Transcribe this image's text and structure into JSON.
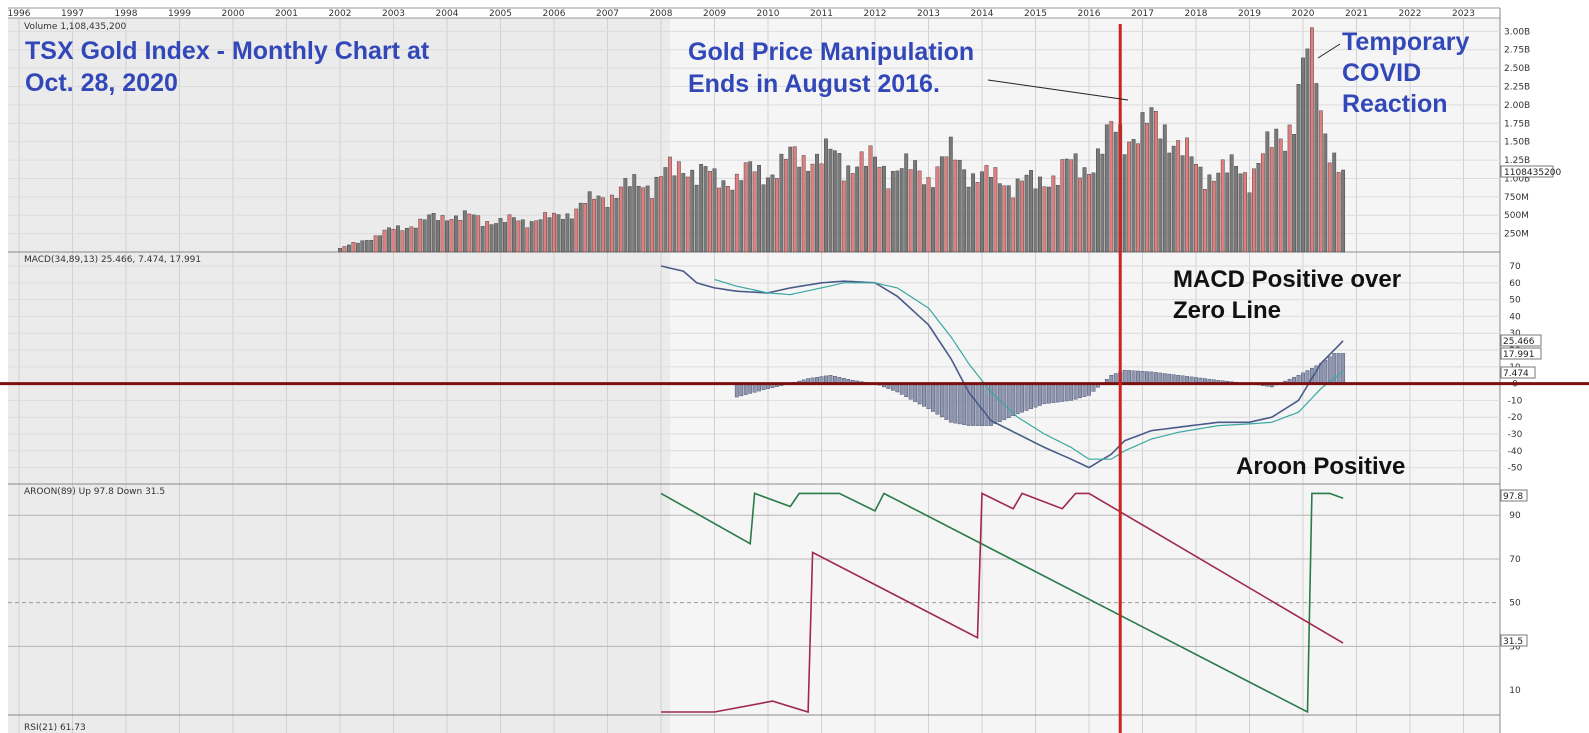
{
  "years": [
    "1996",
    "1997",
    "1998",
    "1999",
    "2000",
    "2001",
    "2002",
    "2003",
    "2004",
    "2005",
    "2006",
    "2007",
    "2008",
    "2009",
    "2010",
    "2011",
    "2012",
    "2013",
    "2014",
    "2015",
    "2016",
    "2017",
    "2018",
    "2019",
    "2020",
    "2021",
    "2022",
    "2023"
  ],
  "annotations": {
    "title_line1": "TSX Gold Index - Monthly Chart at",
    "title_line2": "Oct. 28, 2020",
    "manip_line1": "Gold Price Manipulation",
    "manip_line2": "Ends in August 2016.",
    "covid_line1": "Temporary",
    "covid_line2": "COVID",
    "covid_line3": "Reaction",
    "macd_line1": "MACD Positive over",
    "macd_line2": "Zero Line",
    "aroon": "Aroon Positive"
  },
  "colors": {
    "up_bar": "#e07d7d",
    "down_bar": "#7a7a7a",
    "macd_line": "#4a5a8a",
    "signal_line": "#3aa8a0",
    "histogram": "#8f97b0",
    "aroon_up": "#2a7a4a",
    "aroon_down": "#a0284a",
    "marker_vertical": "#cc2222",
    "zero_line": "#7a1010",
    "annotation_blue": "#3348b8"
  },
  "chart_data": [
    {
      "type": "bar",
      "panel_label": "Volume 1,108,435,200",
      "last_value_tag": "1108435200",
      "y_ticks": [
        "3.00B",
        "2.75B",
        "2.50B",
        "2.25B",
        "2.00B",
        "1.75B",
        "1.50B",
        "1.25B",
        "1.00B",
        "750M",
        "500M",
        "250M"
      ],
      "ylim": [
        0,
        3.1
      ],
      "unit": "billions",
      "start_month": "2002-01",
      "end_month": "2020-10",
      "anchors": [
        {
          "date": "2002-01",
          "value": 0.05
        },
        {
          "date": "2003-01",
          "value": 0.33
        },
        {
          "date": "2004-01",
          "value": 0.55
        },
        {
          "date": "2005-01",
          "value": 0.45
        },
        {
          "date": "2006-01",
          "value": 0.5
        },
        {
          "date": "2007-01",
          "value": 0.85
        },
        {
          "date": "2008-01",
          "value": 1.1
        },
        {
          "date": "2008-07",
          "value": 1.3
        },
        {
          "date": "2009-01",
          "value": 1.05
        },
        {
          "date": "2010-01",
          "value": 1.2
        },
        {
          "date": "2010-10",
          "value": 1.45
        },
        {
          "date": "2011-06",
          "value": 1.35
        },
        {
          "date": "2012-01",
          "value": 1.3
        },
        {
          "date": "2013-01",
          "value": 1.15
        },
        {
          "date": "2013-06",
          "value": 1.4
        },
        {
          "date": "2014-01",
          "value": 1.1
        },
        {
          "date": "2015-01",
          "value": 1.0
        },
        {
          "date": "2015-06",
          "value": 1.2
        },
        {
          "date": "2016-01",
          "value": 1.3
        },
        {
          "date": "2016-07",
          "value": 1.75
        },
        {
          "date": "2017-01",
          "value": 1.8
        },
        {
          "date": "2017-06",
          "value": 1.9
        },
        {
          "date": "2018-01",
          "value": 1.2
        },
        {
          "date": "2019-01",
          "value": 1.2
        },
        {
          "date": "2019-09",
          "value": 1.75
        },
        {
          "date": "2020-03",
          "value": 3.05
        },
        {
          "date": "2020-05",
          "value": 2.05
        },
        {
          "date": "2020-10",
          "value": 1.1
        }
      ]
    },
    {
      "type": "line",
      "panel_label": "MACD(34,89,13) 25.466, 7.474, 17.991",
      "value_tags": [
        "25.466",
        "17.991",
        "7.474"
      ],
      "y_ticks": [
        "70",
        "60",
        "50",
        "40",
        "30",
        "20",
        "10",
        "0",
        "-10",
        "-20",
        "-30",
        "-40",
        "-50"
      ],
      "ylim": [
        -55,
        73
      ],
      "series": [
        {
          "name": "MACD",
          "values": [
            {
              "date": "2008-01",
              "value": 70
            },
            {
              "date": "2008-06",
              "value": 67
            },
            {
              "date": "2008-09",
              "value": 60
            },
            {
              "date": "2009-01",
              "value": 57
            },
            {
              "date": "2009-06",
              "value": 55
            },
            {
              "date": "2010-01",
              "value": 54
            },
            {
              "date": "2010-06",
              "value": 57
            },
            {
              "date": "2011-01",
              "value": 60
            },
            {
              "date": "2011-06",
              "value": 61
            },
            {
              "date": "2012-01",
              "value": 60
            },
            {
              "date": "2012-06",
              "value": 52
            },
            {
              "date": "2013-01",
              "value": 35
            },
            {
              "date": "2013-06",
              "value": 15
            },
            {
              "date": "2013-10",
              "value": -5
            },
            {
              "date": "2014-03",
              "value": -22
            },
            {
              "date": "2014-09",
              "value": -30
            },
            {
              "date": "2015-03",
              "value": -38
            },
            {
              "date": "2015-09",
              "value": -45
            },
            {
              "date": "2016-01",
              "value": -50
            },
            {
              "date": "2016-06",
              "value": -42
            },
            {
              "date": "2016-09",
              "value": -34
            },
            {
              "date": "2017-03",
              "value": -28
            },
            {
              "date": "2017-09",
              "value": -26
            },
            {
              "date": "2018-06",
              "value": -23
            },
            {
              "date": "2019-01",
              "value": -23
            },
            {
              "date": "2019-06",
              "value": -20
            },
            {
              "date": "2019-12",
              "value": -10
            },
            {
              "date": "2020-05",
              "value": 12
            },
            {
              "date": "2020-10",
              "value": 25.466
            }
          ]
        },
        {
          "name": "Signal",
          "values": [
            {
              "date": "2009-01",
              "value": 62
            },
            {
              "date": "2009-06",
              "value": 58
            },
            {
              "date": "2010-01",
              "value": 54
            },
            {
              "date": "2010-06",
              "value": 53
            },
            {
              "date": "2011-01",
              "value": 57
            },
            {
              "date": "2011-06",
              "value": 60
            },
            {
              "date": "2012-01",
              "value": 60
            },
            {
              "date": "2012-06",
              "value": 57
            },
            {
              "date": "2013-01",
              "value": 45
            },
            {
              "date": "2013-06",
              "value": 28
            },
            {
              "date": "2013-10",
              "value": 12
            },
            {
              "date": "2014-03",
              "value": -5
            },
            {
              "date": "2014-09",
              "value": -20
            },
            {
              "date": "2015-03",
              "value": -30
            },
            {
              "date": "2015-09",
              "value": -38
            },
            {
              "date": "2016-01",
              "value": -45
            },
            {
              "date": "2016-06",
              "value": -45
            },
            {
              "date": "2016-09",
              "value": -40
            },
            {
              "date": "2017-03",
              "value": -33
            },
            {
              "date": "2017-09",
              "value": -29
            },
            {
              "date": "2018-06",
              "value": -25
            },
            {
              "date": "2019-01",
              "value": -24
            },
            {
              "date": "2019-06",
              "value": -23
            },
            {
              "date": "2019-12",
              "value": -17
            },
            {
              "date": "2020-05",
              "value": -3
            },
            {
              "date": "2020-10",
              "value": 7.474
            }
          ]
        },
        {
          "name": "Histogram",
          "values": [
            {
              "date": "2009-06",
              "value": -8
            },
            {
              "date": "2010-01",
              "value": -3
            },
            {
              "date": "2010-06",
              "value": 0
            },
            {
              "date": "2010-10",
              "value": 3
            },
            {
              "date": "2011-03",
              "value": 5
            },
            {
              "date": "2011-08",
              "value": 2
            },
            {
              "date": "2012-01",
              "value": 0
            },
            {
              "date": "2012-06",
              "value": -5
            },
            {
              "date": "2013-01",
              "value": -15
            },
            {
              "date": "2013-06",
              "value": -23
            },
            {
              "date": "2013-10",
              "value": -25
            },
            {
              "date": "2014-03",
              "value": -25
            },
            {
              "date": "2014-09",
              "value": -18
            },
            {
              "date": "2015-03",
              "value": -12
            },
            {
              "date": "2015-09",
              "value": -10
            },
            {
              "date": "2016-01",
              "value": -7
            },
            {
              "date": "2016-06",
              "value": 5
            },
            {
              "date": "2016-09",
              "value": 8
            },
            {
              "date": "2017-03",
              "value": 7
            },
            {
              "date": "2017-09",
              "value": 5
            },
            {
              "date": "2018-06",
              "value": 2
            },
            {
              "date": "2019-01",
              "value": 0
            },
            {
              "date": "2019-06",
              "value": -2
            },
            {
              "date": "2019-12",
              "value": 5
            },
            {
              "date": "2020-05",
              "value": 12
            },
            {
              "date": "2020-08",
              "value": 18
            },
            {
              "date": "2020-10",
              "value": 17.991
            }
          ]
        }
      ]
    },
    {
      "type": "line",
      "panel_label": "AROON(89) Up 97.8 Down 31.5",
      "value_tags": [
        "97.8",
        "31.5"
      ],
      "y_ticks": [
        "90",
        "70",
        "50",
        "30",
        "10"
      ],
      "gridlines": [
        90,
        70,
        50,
        30
      ],
      "ylim": [
        0,
        102
      ],
      "series": [
        {
          "name": "Up",
          "values": [
            {
              "date": "2008-01",
              "value": 100
            },
            {
              "date": "2009-09",
              "value": 77
            },
            {
              "date": "2009-10",
              "value": 100
            },
            {
              "date": "2010-06",
              "value": 94
            },
            {
              "date": "2010-08",
              "value": 100
            },
            {
              "date": "2011-05",
              "value": 100
            },
            {
              "date": "2012-01",
              "value": 92
            },
            {
              "date": "2012-03",
              "value": 100
            },
            {
              "date": "2020-02",
              "value": 0
            },
            {
              "date": "2020-03",
              "value": 100
            },
            {
              "date": "2020-07",
              "value": 100
            },
            {
              "date": "2020-10",
              "value": 97.8
            }
          ]
        },
        {
          "name": "Down",
          "values": [
            {
              "date": "2008-01",
              "value": 0
            },
            {
              "date": "2009-01",
              "value": 0
            },
            {
              "date": "2010-02",
              "value": 5
            },
            {
              "date": "2010-10",
              "value": 0
            },
            {
              "date": "2010-11",
              "value": 73
            },
            {
              "date": "2013-12",
              "value": 34
            },
            {
              "date": "2014-01",
              "value": 100
            },
            {
              "date": "2014-08",
              "value": 93
            },
            {
              "date": "2014-10",
              "value": 100
            },
            {
              "date": "2015-07",
              "value": 93
            },
            {
              "date": "2015-10",
              "value": 100
            },
            {
              "date": "2016-01",
              "value": 100
            },
            {
              "date": "2020-10",
              "value": 31.5
            }
          ]
        }
      ]
    }
  ],
  "bottom_panel_label": "RSI(21) 61.73"
}
